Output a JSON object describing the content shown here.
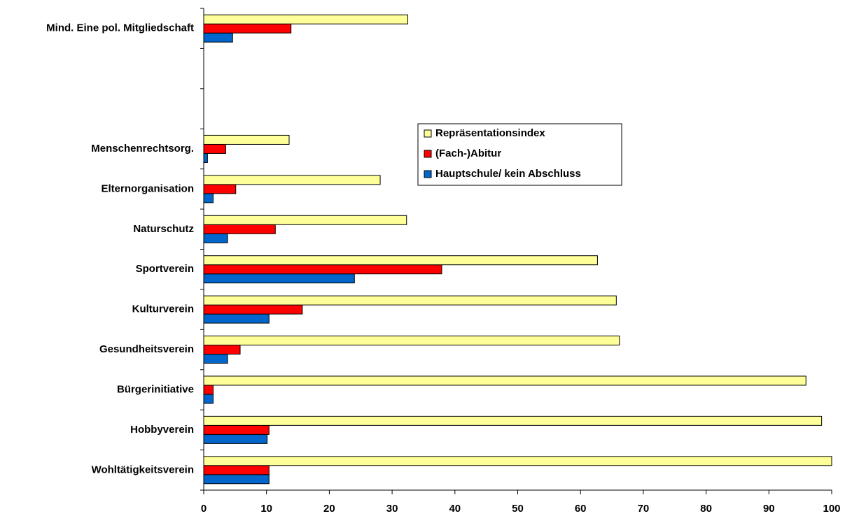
{
  "chart_data": {
    "type": "hbar",
    "categories": [
      "Wohltätigkeitsverein",
      "Hobbyverein",
      "Bürgerinitiative",
      "Gesundheitsverein",
      "Kulturverein",
      "Sportverein",
      "Naturschutz",
      "Elternorganisation",
      "Menschenrechtsorg.",
      null,
      null,
      "Mind. Eine pol. Mitgliedschaft"
    ],
    "series": [
      {
        "name": "Hauptschule/ kein Abschluss",
        "color": "#0066cc",
        "values": [
          10.4,
          10.1,
          1.5,
          3.8,
          10.4,
          24.0,
          3.8,
          1.5,
          0.6,
          null,
          null,
          4.6
        ]
      },
      {
        "name": "(Fach-)Abitur",
        "color": "#ff0000",
        "values": [
          10.4,
          10.4,
          1.5,
          5.8,
          15.7,
          37.9,
          11.4,
          5.1,
          3.5,
          null,
          null,
          13.9
        ]
      },
      {
        "name": "Repräsentationsindex",
        "color": "#ffff99",
        "values": [
          100,
          98.4,
          95.9,
          66.2,
          65.7,
          62.7,
          32.3,
          28.1,
          13.6,
          null,
          null,
          32.5
        ]
      }
    ],
    "xlim": [
      0,
      100
    ],
    "xticks": [
      0,
      10,
      20,
      30,
      40,
      50,
      60,
      70,
      80,
      90,
      100
    ],
    "legend": "center-right",
    "grid": false
  }
}
